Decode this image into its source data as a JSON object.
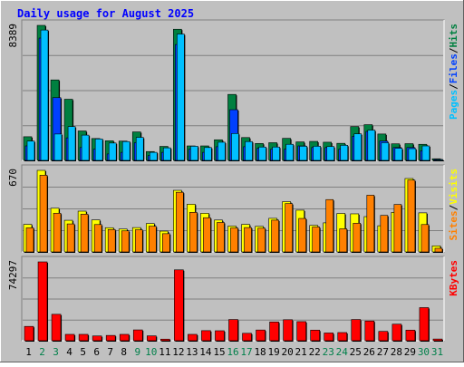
{
  "chart_data": {
    "type": "bar",
    "title": "Daily usage for August 2025",
    "categories": [
      "1",
      "2",
      "3",
      "4",
      "5",
      "6",
      "7",
      "8",
      "9",
      "10",
      "11",
      "12",
      "13",
      "14",
      "15",
      "16",
      "17",
      "18",
      "19",
      "20",
      "21",
      "22",
      "23",
      "24",
      "25",
      "26",
      "27",
      "28",
      "29",
      "30",
      "31"
    ],
    "weekend_days": [
      "2",
      "3",
      "9",
      "10",
      "16",
      "17",
      "23",
      "24",
      "30",
      "31"
    ],
    "panels": [
      {
        "id": "hits",
        "scale_label": "8389",
        "max": 8389,
        "right_labels": [
          "Pages",
          "Files",
          "Hits"
        ],
        "series": [
          {
            "name": "Hits",
            "color": "#008040",
            "values": [
              1470,
              8389,
              5000,
              3800,
              1830,
              1360,
              1220,
              1200,
              1770,
              550,
              870,
              8150,
              900,
              900,
              1280,
              4100,
              1420,
              1050,
              1100,
              1370,
              1150,
              1180,
              1130,
              1060,
              2100,
              2220,
              1640,
              1030,
              1040,
              1000,
              100
            ]
          },
          {
            "name": "Files",
            "color": "#0040ff",
            "values": [
              900,
              7600,
              3900,
              1400,
              800,
              700,
              400,
              500,
              1100,
              300,
              500,
              7200,
              700,
              500,
              850,
              3150,
              850,
              750,
              700,
              700,
              900,
              800,
              800,
              700,
              1500,
              1800,
              1200,
              800,
              800,
              600,
              60
            ]
          },
          {
            "name": "Pages",
            "color": "#00c0ff",
            "values": [
              1200,
              8100,
              1640,
              2100,
              1570,
              1330,
              1080,
              1170,
              1430,
              500,
              780,
              7850,
              880,
              800,
              1130,
              1670,
              1170,
              830,
              830,
              1000,
              880,
              880,
              860,
              940,
              1650,
              1880,
              1100,
              750,
              730,
              900,
              50
            ]
          }
        ]
      },
      {
        "id": "visits",
        "scale_label": "670",
        "max": 670,
        "right_labels": [
          "Sites",
          "Visits"
        ],
        "series": [
          {
            "name": "Visits",
            "color": "#ffff00",
            "values": [
              226,
              670,
              359,
              260,
              335,
              263,
              199,
              188,
              200,
              233,
              171,
              506,
              392,
              317,
              262,
              212,
              226,
              210,
              276,
              413,
              343,
              218,
              239,
              316,
              313,
              290,
              215,
              325,
              603,
              321,
              50
            ]
          },
          {
            "name": "Sites",
            "color": "#ff8000",
            "values": [
              198,
              630,
              318,
              230,
              310,
              225,
              184,
              173,
              182,
              211,
              150,
              490,
              325,
              281,
              242,
              197,
              200,
              195,
              261,
              397,
              275,
              205,
              430,
              190,
              236,
              466,
              300,
              390,
              590,
              225,
              30
            ]
          }
        ]
      },
      {
        "id": "kbytes",
        "scale_label": "74297",
        "max": 74297,
        "right_labels": [
          "KBytes"
        ],
        "series": [
          {
            "name": "KBytes",
            "color": "#ff0000",
            "values": [
              13500,
              74297,
              24900,
              6000,
              6000,
              4500,
              5000,
              6000,
              10200,
              4600,
              1500,
              66800,
              6000,
              9500,
              9400,
              20000,
              7000,
              10100,
              17700,
              19800,
              18000,
              10000,
              7300,
              7700,
              20000,
              18600,
              8800,
              15600,
              10000,
              31200,
              1600
            ]
          }
        ]
      }
    ]
  }
}
